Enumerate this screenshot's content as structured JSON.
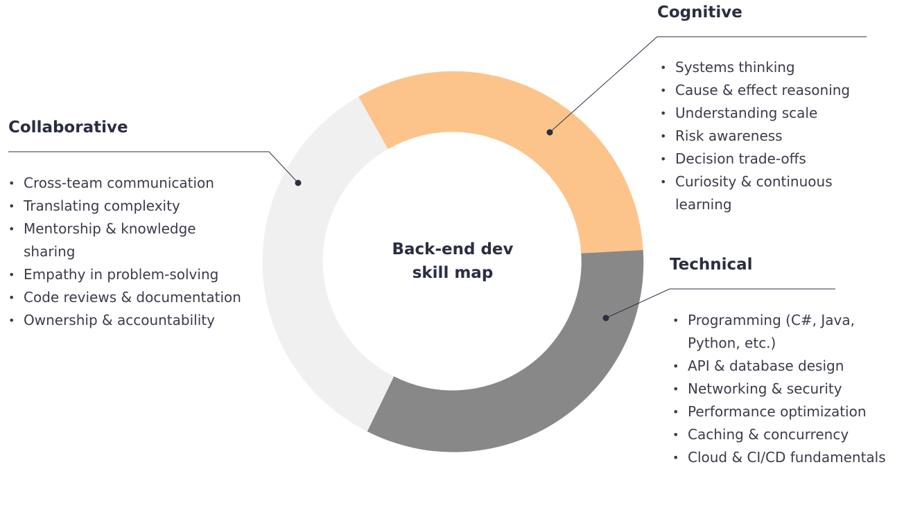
{
  "center": {
    "line1": "Back-end dev",
    "line2": "skill map"
  },
  "categories": [
    {
      "id": "collaborative",
      "title": "Collaborative",
      "color": "#f0f0f0",
      "items": [
        "Cross-team communication",
        "Translating complexity",
        "Mentorship & knowledge sharing",
        "Empathy in problem-solving",
        "Code reviews & documentation",
        "Ownership & accountability"
      ]
    },
    {
      "id": "cognitive",
      "title": "Cognitive",
      "color": "#fcc48b",
      "items": [
        "Systems thinking",
        "Cause & effect reasoning",
        "Understanding scale",
        "Risk awareness",
        "Decision trade-offs",
        "Curiosity & continuous learning"
      ]
    },
    {
      "id": "technical",
      "title": "Technical",
      "color": "#888888",
      "items": [
        "Programming (C#, Java, Python, etc.)",
        "API & database design",
        "Networking & security",
        "Performance optimization",
        "Caching & concurrency",
        "Cloud & CI/CD fundamentals"
      ]
    }
  ],
  "colors": {
    "text": "#2b2d42",
    "connector": "#2b2d42"
  }
}
